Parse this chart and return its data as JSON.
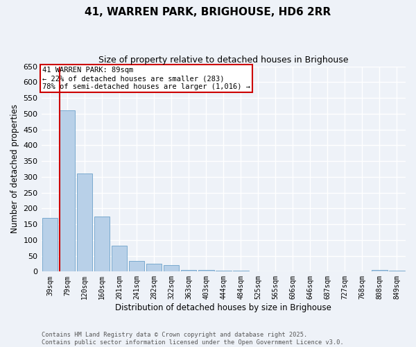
{
  "title1": "41, WARREN PARK, BRIGHOUSE, HD6 2RR",
  "title2": "Size of property relative to detached houses in Brighouse",
  "xlabel": "Distribution of detached houses by size in Brighouse",
  "ylabel": "Number of detached properties",
  "categories": [
    "39sqm",
    "79sqm",
    "120sqm",
    "160sqm",
    "201sqm",
    "241sqm",
    "282sqm",
    "322sqm",
    "363sqm",
    "403sqm",
    "444sqm",
    "484sqm",
    "525sqm",
    "565sqm",
    "606sqm",
    "646sqm",
    "687sqm",
    "727sqm",
    "768sqm",
    "808sqm",
    "849sqm"
  ],
  "values": [
    170,
    510,
    310,
    175,
    82,
    33,
    25,
    20,
    5,
    6,
    2,
    2,
    1,
    1,
    0,
    0,
    0,
    0,
    0,
    5,
    3
  ],
  "bar_color": "#b8d0e8",
  "bar_edge_color": "#7aaace",
  "ylim": [
    0,
    650
  ],
  "yticks": [
    0,
    50,
    100,
    150,
    200,
    250,
    300,
    350,
    400,
    450,
    500,
    550,
    600,
    650
  ],
  "bg_color": "#eef2f8",
  "grid_color": "#ffffff",
  "annotation_text": "41 WARREN PARK: 89sqm\n← 22% of detached houses are smaller (283)\n78% of semi-detached houses are larger (1,016) →",
  "annotation_box_color": "#ffffff",
  "annotation_box_edge": "#cc0000",
  "red_line_color": "#cc0000",
  "footer_line1": "Contains HM Land Registry data © Crown copyright and database right 2025.",
  "footer_line2": "Contains public sector information licensed under the Open Government Licence v3.0."
}
